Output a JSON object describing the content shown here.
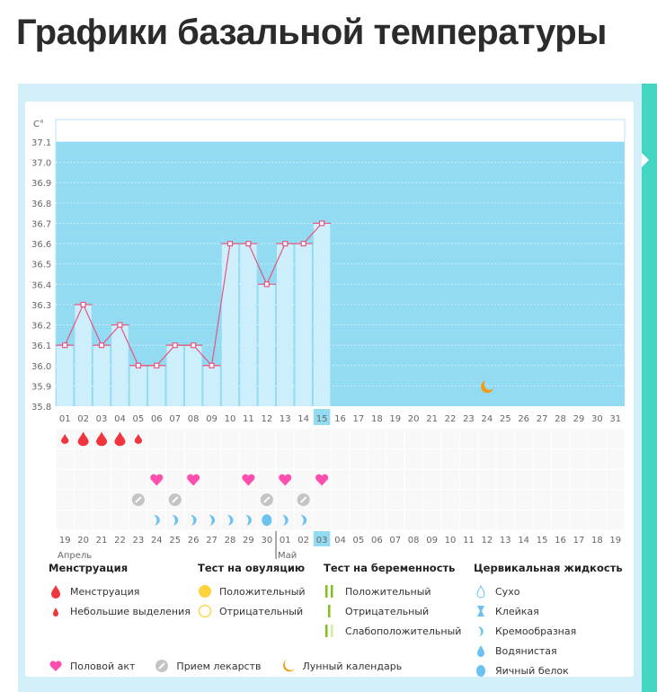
{
  "page_title": "Графики базальной температуры",
  "chart_data": {
    "type": "bar",
    "unit_label": "C°",
    "ylim": [
      35.8,
      37.1
    ],
    "y_ticks": [
      "35.8",
      "35.9",
      "36.0",
      "36.1",
      "36.2",
      "36.3",
      "36.4",
      "36.5",
      "36.6",
      "36.7",
      "36.8",
      "36.9",
      "37.0",
      "37.1"
    ],
    "cycle_days": [
      "01",
      "02",
      "03",
      "04",
      "05",
      "06",
      "07",
      "08",
      "09",
      "10",
      "11",
      "12",
      "13",
      "14",
      "15",
      "16",
      "17",
      "18",
      "19",
      "20",
      "21",
      "22",
      "23",
      "24",
      "25",
      "26",
      "27",
      "28",
      "29",
      "30",
      "31"
    ],
    "temperatures": [
      36.1,
      36.3,
      36.1,
      36.2,
      36.0,
      36.0,
      36.1,
      36.1,
      36.0,
      36.6,
      36.6,
      36.4,
      36.6,
      36.6,
      36.7
    ],
    "today_index": 14,
    "dates": [
      "19",
      "20",
      "21",
      "22",
      "23",
      "24",
      "25",
      "26",
      "27",
      "28",
      "29",
      "30",
      "01",
      "02",
      "03",
      "04",
      "05",
      "06",
      "07",
      "08",
      "09",
      "10",
      "11",
      "12",
      "13",
      "14",
      "15",
      "16",
      "17",
      "18",
      "19"
    ],
    "weekend_indices": [
      2,
      3,
      9,
      10,
      16,
      17,
      23,
      24,
      30
    ],
    "months": [
      {
        "label": "Апрель",
        "start_index": 0
      },
      {
        "label": "Май",
        "start_index": 12
      }
    ],
    "events": {
      "menstruation": {
        "0": "small",
        "1": "big",
        "2": "big",
        "3": "big",
        "4": "small"
      },
      "intercourse": [
        5,
        7,
        10,
        12,
        14
      ],
      "medication": [
        4,
        6,
        11,
        13
      ],
      "cervical": {
        "5": "creamy",
        "6": "creamy",
        "7": "creamy",
        "8": "creamy",
        "9": "creamy",
        "10": "creamy",
        "11": "egg-white",
        "12": "creamy",
        "13": "creamy"
      },
      "moon": [
        23
      ]
    }
  },
  "legend": {
    "menstruation": {
      "title": "Менструация",
      "items": [
        "Менструация",
        "Небольшие выделения"
      ]
    },
    "ovulation": {
      "title": "Тест на овуляцию",
      "items": [
        "Положительный",
        "Отрицательный"
      ]
    },
    "pregnancy": {
      "title": "Тест на беременность",
      "items": [
        "Положительный",
        "Отрицательный",
        "Слабоположительный"
      ]
    },
    "cervical": {
      "title": "Цервикальная жидкость",
      "items": [
        "Сухо",
        "Клейкая",
        "Кремообразная",
        "Водянистая",
        "Яичный белок"
      ]
    },
    "other": [
      "Половой акт",
      "Прием лекарств",
      "Лунный календарь"
    ]
  },
  "colors": {
    "sky": "#93daf3",
    "bar": "#cdeefb",
    "line": "#e8557e",
    "blood": "#f0353e",
    "heart": "#ff4fae",
    "pill": "#c4c4c4",
    "drop": "#6cc2ef",
    "moon": "#f39a12",
    "weekend": "#f0325e",
    "teal": "#44d6c2",
    "green": "#7cc21b"
  }
}
